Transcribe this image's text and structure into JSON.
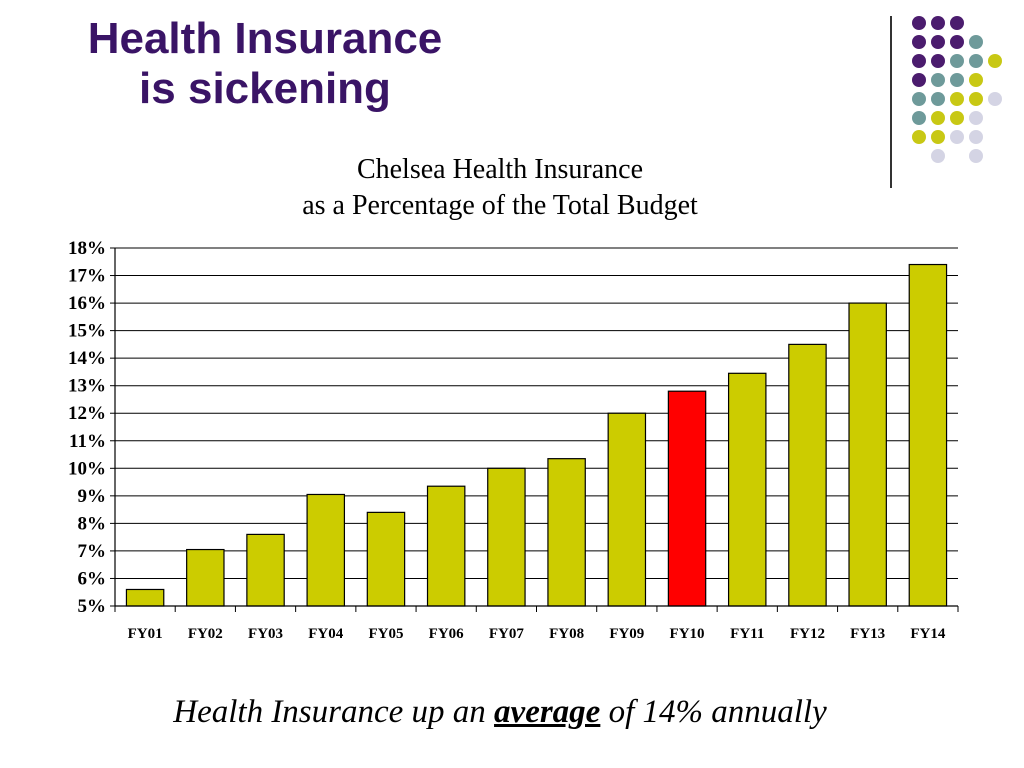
{
  "slide": {
    "title_line1": "Health Insurance",
    "title_line2": "is sickening",
    "caption_before": "Health Insurance up an ",
    "caption_emphasis": "average",
    "caption_after": " of 14% annually"
  },
  "colors": {
    "title": "#3a1466",
    "bar": "#cccc00",
    "highlight_bar": "#ff0000",
    "dot_purple": "#4b1c6e",
    "dot_teal": "#6e9a9a",
    "dot_yellow": "#c8c814",
    "dot_lavender": "#d4d4e4"
  },
  "chart_data": {
    "type": "bar",
    "title": "Chelsea Health Insurance as a Percentage of the Total Budget",
    "title_line1": "Chelsea Health Insurance",
    "title_line2": "as a Percentage of the Total Budget",
    "xlabel": "",
    "ylabel": "",
    "categories": [
      "FY01",
      "FY02",
      "FY03",
      "FY04",
      "FY05",
      "FY06",
      "FY07",
      "FY08",
      "FY09",
      "FY10",
      "FY11",
      "FY12",
      "FY13",
      "FY14"
    ],
    "values": [
      5.6,
      7.05,
      7.6,
      9.05,
      8.4,
      9.35,
      10.0,
      10.35,
      12.0,
      12.8,
      13.45,
      14.5,
      16.0,
      17.4
    ],
    "highlight_category": "FY10",
    "ylim": [
      5,
      18
    ],
    "yticks": [
      5,
      6,
      7,
      8,
      9,
      10,
      11,
      12,
      13,
      14,
      15,
      16,
      17,
      18
    ],
    "ytick_labels": [
      "5%",
      "6%",
      "7%",
      "8%",
      "9%",
      "10%",
      "11%",
      "12%",
      "13%",
      "14%",
      "15%",
      "16%",
      "17%",
      "18%"
    ],
    "grid": true,
    "legend": "none"
  }
}
